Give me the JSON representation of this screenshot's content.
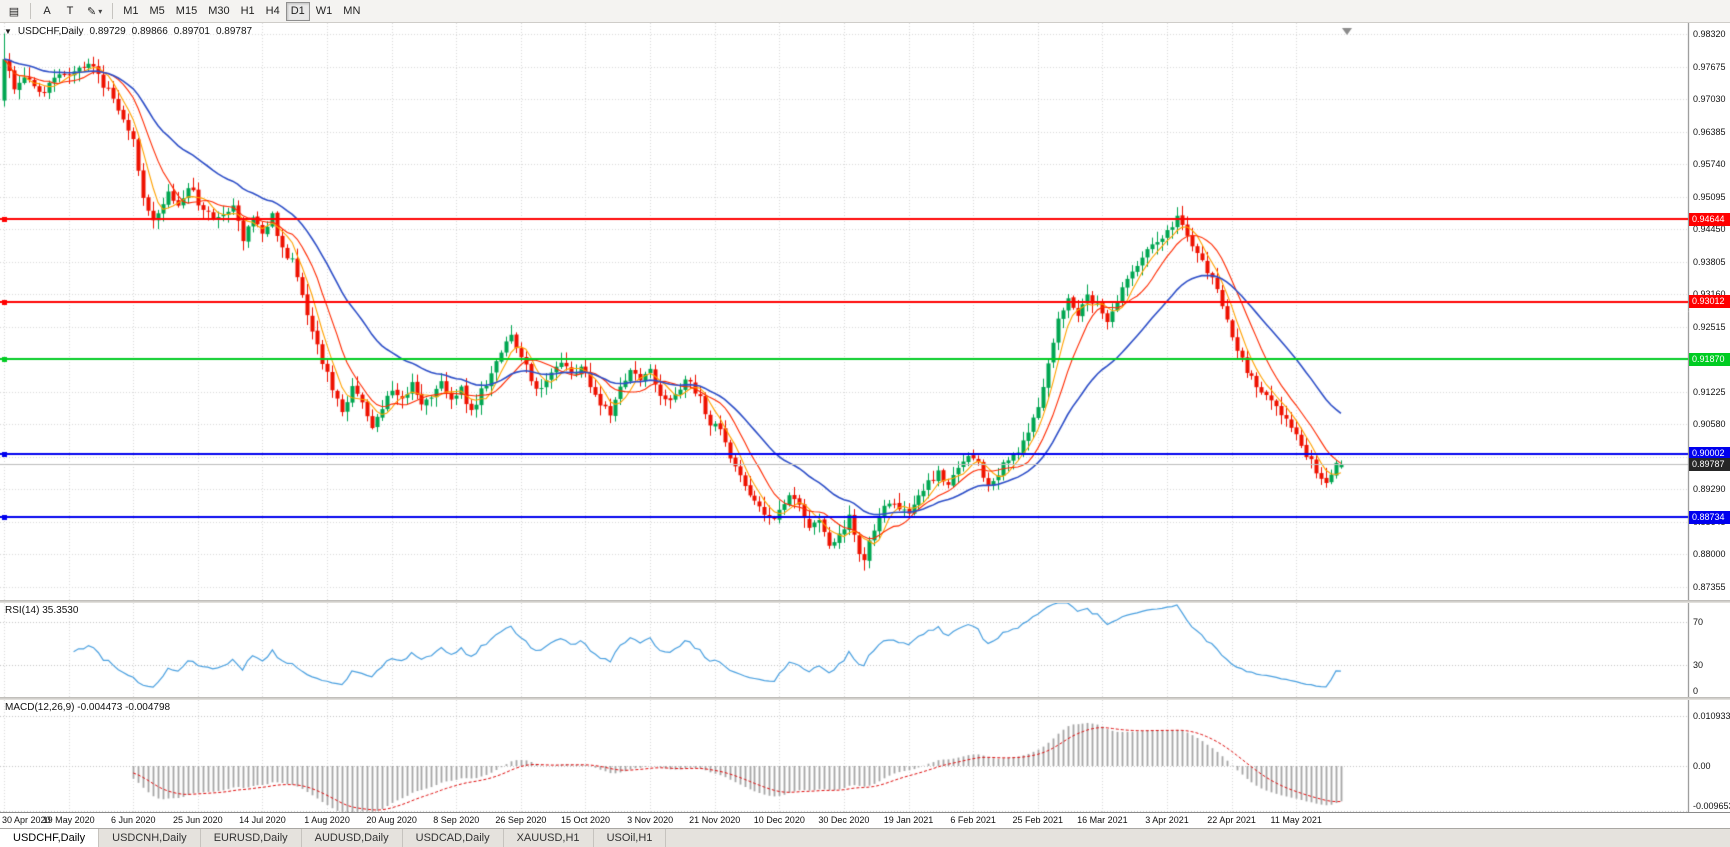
{
  "toolbar": {
    "tools": [
      {
        "name": "charts-grid-icon",
        "glyph": "▤"
      },
      {
        "name": "annotate-a-button",
        "glyph": "A"
      },
      {
        "name": "text-tool-icon",
        "glyph": "T"
      },
      {
        "name": "drawing-pen-icon",
        "glyph": "✎",
        "dropdown": true
      }
    ],
    "timeframes": [
      "M1",
      "M5",
      "M15",
      "M30",
      "H1",
      "H4",
      "D1",
      "W1",
      "MN"
    ],
    "active_timeframe": "D1"
  },
  "chart": {
    "title": "USDCHF,Daily",
    "ohlc": {
      "open": "0.89729",
      "high": "0.89866",
      "low": "0.89701",
      "close": "0.89787"
    },
    "price_scale": {
      "labels": [
        "0.98320",
        "0.97675",
        "0.97030",
        "0.96385",
        "0.95740",
        "0.95095",
        "0.94450",
        "0.93805",
        "0.93160",
        "0.92515",
        "0.91870",
        "0.91225",
        "0.90580",
        "0.89935",
        "0.89290",
        "0.88645",
        "0.88000",
        "0.87355"
      ]
    },
    "hlines": [
      {
        "price": 0.94644,
        "label": "0.94644",
        "color": "#ff0000"
      },
      {
        "price": 0.93012,
        "label": "0.93012",
        "color": "#ff0000"
      },
      {
        "price": 0.9187,
        "label": "0.91870",
        "color": "#00cc22"
      },
      {
        "price": 0.90002,
        "label": "0.90002",
        "color": "#0000ee"
      },
      {
        "price": 0.88734,
        "label": "0.88734",
        "color": "#0000ee"
      }
    ],
    "current_price": {
      "value": 0.89787,
      "label": "0.89787",
      "color": "#262626",
      "line_color": "#bdbdbd"
    },
    "dates": [
      "30 Apr 2020",
      "19 May 2020",
      "6 Jun 2020",
      "25 Jun 2020",
      "14 Jul 2020",
      "1 Aug 2020",
      "20 Aug 2020",
      "8 Sep 2020",
      "26 Sep 2020",
      "15 Oct 2020",
      "3 Nov 2020",
      "21 Nov 2020",
      "10 Dec 2020",
      "30 Dec 2020",
      "19 Jan 2021",
      "6 Feb 2021",
      "25 Feb 2021",
      "16 Mar 2021",
      "3 Apr 2021",
      "22 Apr 2021",
      "11 May 2021"
    ]
  },
  "rsi": {
    "label": "RSI(14) 35.3530",
    "current": 35.353,
    "scale_labels": [
      "70",
      "30",
      "0"
    ],
    "level_lines": [
      70,
      30
    ],
    "color": "#4aa0e0"
  },
  "macd": {
    "label": "MACD(12,26,9) -0.004473 -0.004798",
    "main_value": -0.004473,
    "signal_value": -0.004798,
    "scale_labels": [
      "0.010933",
      "0.00",
      "-0.009653"
    ],
    "histogram_color": "#a6a6a6",
    "signal_color": "#e01010"
  },
  "tabs": [
    {
      "label": "USDCHF,Daily",
      "active": true
    },
    {
      "label": "USDCNH,Daily",
      "active": false
    },
    {
      "label": "EURUSD,Daily",
      "active": false
    },
    {
      "label": "AUDUSD,Daily",
      "active": false
    },
    {
      "label": "USDCAD,Daily",
      "active": false
    },
    {
      "label": "XAUUSD,H1",
      "active": false
    },
    {
      "label": "USOil,H1",
      "active": false
    }
  ],
  "chart_data": {
    "type": "candlestick",
    "symbol": "USDCHF",
    "timeframe": "Daily",
    "num_candles": 270,
    "x_labels": [
      "30 Apr 2020",
      "19 May 2020",
      "6 Jun 2020",
      "25 Jun 2020",
      "14 Jul 2020",
      "1 Aug 2020",
      "20 Aug 2020",
      "8 Sep 2020",
      "26 Sep 2020",
      "15 Oct 2020",
      "3 Nov 2020",
      "21 Nov 2020",
      "10 Dec 2020",
      "30 Dec 2020",
      "19 Jan 2021",
      "6 Feb 2021",
      "25 Feb 2021",
      "16 Mar 2021",
      "3 Apr 2021",
      "22 Apr 2021",
      "11 May 2021"
    ],
    "y_range": [
      0.87096,
      0.98538
    ],
    "grid_top": 0.9832,
    "grid_step": 0.00645,
    "bull_color": "#00a651",
    "bear_color": "#ee1100",
    "last_candle": {
      "open": 0.89729,
      "high": 0.89866,
      "low": 0.89701,
      "close": 0.89787
    },
    "close_keypoints": [
      [
        0,
        0.979
      ],
      [
        2,
        0.9725
      ],
      [
        4,
        0.9748
      ],
      [
        7,
        0.9712
      ],
      [
        10,
        0.9742
      ],
      [
        13,
        0.9748
      ],
      [
        16,
        0.9772
      ],
      [
        18,
        0.9762
      ],
      [
        21,
        0.9718
      ],
      [
        23,
        0.9682
      ],
      [
        26,
        0.9628
      ],
      [
        28,
        0.9505
      ],
      [
        30,
        0.9462
      ],
      [
        33,
        0.952
      ],
      [
        35,
        0.9495
      ],
      [
        37,
        0.9532
      ],
      [
        40,
        0.9483
      ],
      [
        43,
        0.9468
      ],
      [
        46,
        0.9492
      ],
      [
        48,
        0.9425
      ],
      [
        50,
        0.9468
      ],
      [
        52,
        0.9442
      ],
      [
        54,
        0.9472
      ],
      [
        56,
        0.9405
      ],
      [
        58,
        0.9382
      ],
      [
        60,
        0.9312
      ],
      [
        62,
        0.9242
      ],
      [
        64,
        0.9182
      ],
      [
        66,
        0.9132
      ],
      [
        68,
        0.9082
      ],
      [
        70,
        0.9132
      ],
      [
        72,
        0.9102
      ],
      [
        74,
        0.9058
      ],
      [
        76,
        0.9092
      ],
      [
        78,
        0.9132
      ],
      [
        80,
        0.9102
      ],
      [
        82,
        0.9137
      ],
      [
        84,
        0.9092
      ],
      [
        86,
        0.9107
      ],
      [
        88,
        0.9142
      ],
      [
        90,
        0.9102
      ],
      [
        92,
        0.9127
      ],
      [
        94,
        0.9082
      ],
      [
        96,
        0.9122
      ],
      [
        98,
        0.9157
      ],
      [
        100,
        0.9202
      ],
      [
        102,
        0.9232
      ],
      [
        104,
        0.9192
      ],
      [
        106,
        0.9147
      ],
      [
        108,
        0.9122
      ],
      [
        110,
        0.9162
      ],
      [
        112,
        0.9182
      ],
      [
        114,
        0.9157
      ],
      [
        116,
        0.9172
      ],
      [
        118,
        0.9132
      ],
      [
        120,
        0.9097
      ],
      [
        122,
        0.9082
      ],
      [
        124,
        0.9132
      ],
      [
        126,
        0.9172
      ],
      [
        128,
        0.9152
      ],
      [
        130,
        0.9167
      ],
      [
        132,
        0.9122
      ],
      [
        134,
        0.9102
      ],
      [
        136,
        0.9132
      ],
      [
        138,
        0.9147
      ],
      [
        140,
        0.9107
      ],
      [
        142,
        0.9062
      ],
      [
        144,
        0.9042
      ],
      [
        146,
        0.8992
      ],
      [
        148,
        0.8952
      ],
      [
        150,
        0.8922
      ],
      [
        152,
        0.8892
      ],
      [
        154,
        0.8872
      ],
      [
        156,
        0.8882
      ],
      [
        158,
        0.8922
      ],
      [
        160,
        0.8902
      ],
      [
        162,
        0.8852
      ],
      [
        164,
        0.8867
      ],
      [
        166,
        0.8822
      ],
      [
        168,
        0.8842
      ],
      [
        170,
        0.8872
      ],
      [
        172,
        0.8802
      ],
      [
        173,
        0.8782
      ],
      [
        174,
        0.8827
      ],
      [
        176,
        0.8882
      ],
      [
        178,
        0.8907
      ],
      [
        180,
        0.8887
      ],
      [
        182,
        0.8882
      ],
      [
        184,
        0.8912
      ],
      [
        186,
        0.8947
      ],
      [
        188,
        0.8962
      ],
      [
        190,
        0.8937
      ],
      [
        192,
        0.8967
      ],
      [
        194,
        0.9002
      ],
      [
        196,
        0.8977
      ],
      [
        198,
        0.8937
      ],
      [
        200,
        0.8962
      ],
      [
        202,
        0.8992
      ],
      [
        204,
        0.9002
      ],
      [
        206,
        0.9042
      ],
      [
        208,
        0.9097
      ],
      [
        210,
        0.9182
      ],
      [
        212,
        0.9262
      ],
      [
        214,
        0.9302
      ],
      [
        216,
        0.9272
      ],
      [
        218,
        0.9312
      ],
      [
        220,
        0.9292
      ],
      [
        222,
        0.9267
      ],
      [
        224,
        0.9302
      ],
      [
        226,
        0.9342
      ],
      [
        228,
        0.9372
      ],
      [
        230,
        0.9402
      ],
      [
        232,
        0.9422
      ],
      [
        234,
        0.9442
      ],
      [
        236,
        0.9467
      ],
      [
        238,
        0.9432
      ],
      [
        240,
        0.9397
      ],
      [
        242,
        0.9362
      ],
      [
        244,
        0.9322
      ],
      [
        246,
        0.9262
      ],
      [
        248,
        0.9202
      ],
      [
        250,
        0.9167
      ],
      [
        252,
        0.9132
      ],
      [
        254,
        0.9112
      ],
      [
        256,
        0.9087
      ],
      [
        258,
        0.9062
      ],
      [
        260,
        0.9032
      ],
      [
        262,
        0.8997
      ],
      [
        264,
        0.8967
      ],
      [
        266,
        0.8947
      ],
      [
        268,
        0.8977
      ],
      [
        269,
        0.89787
      ]
    ],
    "moving_averages": [
      {
        "type": "sma",
        "period": 5,
        "color": "#ffa200"
      },
      {
        "type": "sma",
        "period": 10,
        "color": "#ff2a00"
      },
      {
        "type": "ema",
        "period": 26,
        "color": "#2e4fc8"
      }
    ],
    "indicators": [
      {
        "name": "RSI",
        "period": 14,
        "current": 35.353
      },
      {
        "name": "MACD",
        "fast": 12,
        "slow": 26,
        "signal": 9,
        "current_main": -0.004473,
        "current_signal": -0.004798
      }
    ]
  }
}
